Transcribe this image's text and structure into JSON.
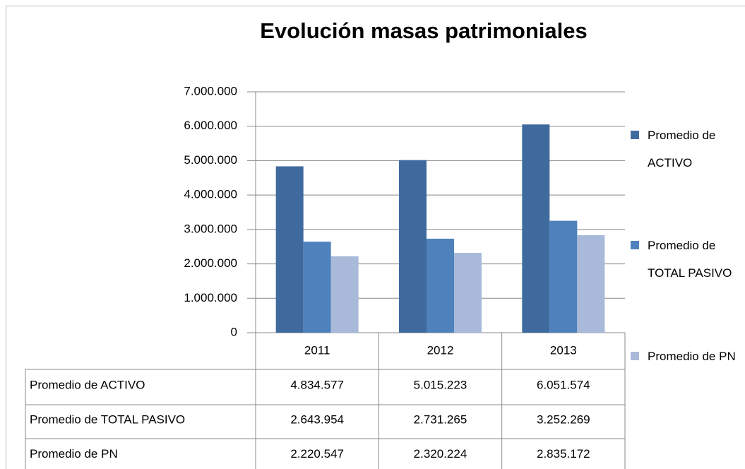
{
  "chart_data": {
    "type": "bar",
    "title": "Evolución masas patrimoniales",
    "categories": [
      "2011",
      "2012",
      "2013"
    ],
    "series": [
      {
        "name": "Promedio de ACTIVO",
        "color": "#3f6a9e",
        "values": [
          4834577,
          5015223,
          6051574
        ],
        "value_labels": [
          "4.834.577",
          "5.015.223",
          "6.051.574"
        ]
      },
      {
        "name": "Promedio de TOTAL PASIVO",
        "color": "#4f81bd",
        "values": [
          2643954,
          2731265,
          3252269
        ],
        "value_labels": [
          "2.643.954",
          "2.731.265",
          "3.252.269"
        ]
      },
      {
        "name": "Promedio de PN",
        "color": "#a9b9d9",
        "values": [
          2220547,
          2320224,
          2835172
        ],
        "value_labels": [
          "2.220.547",
          "2.320.224",
          "2.835.172"
        ]
      }
    ],
    "ylim": [
      0,
      7000000
    ],
    "yticks": [
      0,
      {
        "value": 1000000,
        "label": "1.000.000"
      },
      {
        "value": 2000000,
        "label": "2.000.000"
      },
      {
        "value": 3000000,
        "label": "3.000.000"
      },
      {
        "value": 4000000,
        "label": "4.000.000"
      },
      {
        "value": 5000000,
        "label": "5.000.000"
      },
      {
        "value": 6000000,
        "label": "6.000.000"
      },
      {
        "value": 7000000,
        "label": "7.000.000"
      }
    ],
    "grid": true,
    "legend": "right"
  }
}
